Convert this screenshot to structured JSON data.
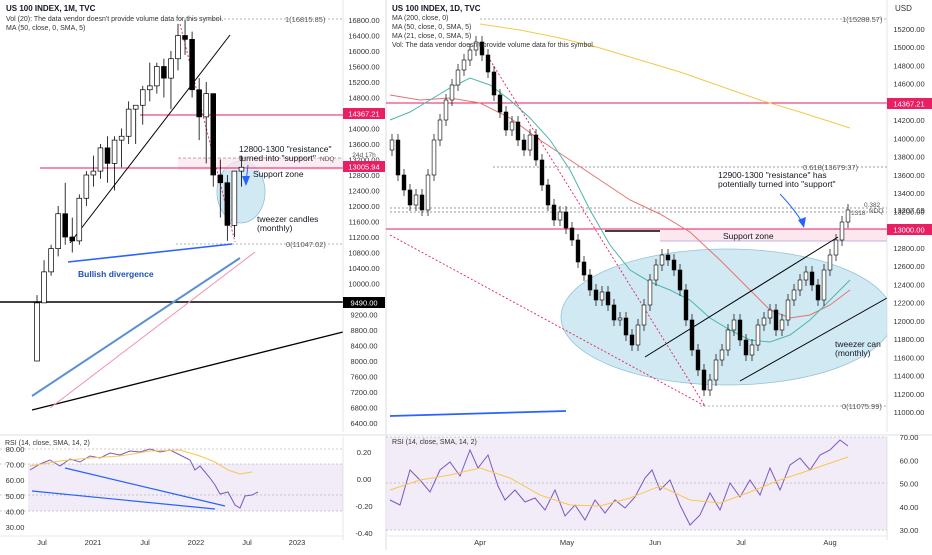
{
  "left_chart": {
    "header": {
      "title": "US 100 INDEX, 1M, TVC",
      "vol": "Vol (20): The data vendor doesn't provide volume data for this symbol.",
      "ma": "MA (50, close, 0, SMA, 5)"
    },
    "y_ticks": [
      "16800.00",
      "16400.00",
      "16000.00",
      "15600.00",
      "15200.00",
      "14800.00",
      "14400.00",
      "14000.00",
      "13600.00",
      "13200.00",
      "12800.00",
      "12400.00",
      "12000.00",
      "11600.00",
      "11200.00",
      "10800.00",
      "10400.00",
      "10000.00",
      "9600.00",
      "9200.00",
      "8800.00",
      "8400.00",
      "8000.00",
      "7600.00",
      "7200.00",
      "6800.00",
      "6400.00"
    ],
    "price_tags": {
      "red_upper": "14367.21",
      "red_lower": "13005.94",
      "black": "9490.00",
      "small": "24d 17h"
    },
    "fib_labels": {
      "top": "1(16815.85)",
      "bottom": "0(11047.02)",
      "ndq": "NDQ"
    },
    "annotations": {
      "resistance": "12800-1300 \"resistance\"\nturned into \"support\"",
      "support_zone": "Support zone",
      "tweezer": "tweezer candles\n(monthly)",
      "bullish": "Bullish divergence"
    },
    "x_labels": [
      "Jul",
      "2021",
      "Jul",
      "2022",
      "Jul",
      "2023"
    ],
    "rsi": {
      "label": "RSI (14, close, SMA, 14, 2)",
      "y_ticks": [
        "80.00",
        "70.00",
        "60.00",
        "50.00",
        "40.00",
        "30.00"
      ]
    },
    "osc": {
      "y_ticks": [
        "0.20",
        "0.00",
        "-0.20",
        "-0.40"
      ]
    }
  },
  "right_chart": {
    "header": {
      "title": "US 100 INDEX, 1D, TVC",
      "ma1": "MA (200, close, 0)",
      "ma2": "MA (50, close, 0, SMA, 5)",
      "ma3": "MA (21, close, 0, SMA, 5)",
      "vol": "Vol: The data vendor doesn't provide volume data for this symbol."
    },
    "currency": "USD",
    "y_ticks": [
      "15200.00",
      "15000.00",
      "14800.00",
      "14600.00",
      "14400.00",
      "14200.00",
      "14000.00",
      "13800.00",
      "13600.00",
      "13400.00",
      "13200.00",
      "13000.00",
      "12800.00",
      "12600.00",
      "12400.00",
      "12200.00",
      "12000.00",
      "11800.00",
      "11600.00",
      "11400.00",
      "11200.00",
      "11000.00"
    ],
    "price_tags": {
      "red_upper": "14367.21",
      "red_lower": "13000.00",
      "gray": "13207.69"
    },
    "fib_labels": {
      "top": "1(15288.57)",
      "mid": "0.618(13679.37)",
      "bottom": "0(11075.99)",
      "ndq": "NDQ",
      "small1": "0.382",
      "small2": "1318"
    },
    "annotations": {
      "resistance": "12900-1300 \"resistance\" has\npotentially turned into \"support\"",
      "support_zone": "Support zone",
      "tweezer": "tweezer can\n(monthly)"
    },
    "x_labels": [
      "Apr",
      "May",
      "Jun",
      "Jul",
      "Aug"
    ],
    "rsi": {
      "label": "RSI (14, close, SMA, 14, 2)",
      "y_ticks": [
        "70.00",
        "60.00",
        "50.00",
        "40.00",
        "30.00"
      ]
    }
  },
  "colors": {
    "bull": "#ffffff",
    "bear": "#000000",
    "red_level": "#e91e63",
    "blue_line": "#2962ff",
    "ma200": "#f2c94c",
    "ma50": "#e57373",
    "ma21": "#4db6ac",
    "rsi": "#7e57c2",
    "rsi_ma": "#f9c74f",
    "zone": "#c8e6f0",
    "support_zone": "#fce4ec"
  },
  "chart_data": [
    {
      "type": "candlestick",
      "title": "US 100 INDEX, 1M, TVC",
      "timeframe": "monthly",
      "ylim": [
        6400,
        16800
      ],
      "levels": {
        "resistance_upper": 14367.21,
        "resistance_lower": 13005.94,
        "support_9490": 9490.0,
        "fib_1": 16815.85,
        "fib_0": 11047.02
      },
      "candles_approx": [
        {
          "o": 8000,
          "h": 9700,
          "l": 8000,
          "c": 9500
        },
        {
          "o": 9500,
          "h": 10600,
          "l": 9500,
          "c": 10300
        },
        {
          "o": 10300,
          "h": 11000,
          "l": 10200,
          "c": 10900
        },
        {
          "o": 10900,
          "h": 12000,
          "l": 10700,
          "c": 11800
        },
        {
          "o": 11800,
          "h": 12600,
          "l": 11000,
          "c": 11200
        },
        {
          "o": 11200,
          "h": 11700,
          "l": 10800,
          "c": 11100
        },
        {
          "o": 11100,
          "h": 12300,
          "l": 11000,
          "c": 12200
        },
        {
          "o": 12200,
          "h": 12900,
          "l": 12000,
          "c": 12800
        },
        {
          "o": 12800,
          "h": 13300,
          "l": 12500,
          "c": 12900
        },
        {
          "o": 12900,
          "h": 13600,
          "l": 12700,
          "c": 13500
        },
        {
          "o": 13500,
          "h": 13800,
          "l": 12600,
          "c": 13100
        },
        {
          "o": 13100,
          "h": 13800,
          "l": 12400,
          "c": 13700
        },
        {
          "o": 13700,
          "h": 14000,
          "l": 13000,
          "c": 13800
        },
        {
          "o": 13800,
          "h": 14700,
          "l": 13600,
          "c": 14500
        },
        {
          "o": 14500,
          "h": 14600,
          "l": 13600,
          "c": 14600
        },
        {
          "o": 14600,
          "h": 15100,
          "l": 14100,
          "c": 15000
        },
        {
          "o": 15000,
          "h": 15700,
          "l": 14700,
          "c": 15100
        },
        {
          "o": 15100,
          "h": 15700,
          "l": 14900,
          "c": 15600
        },
        {
          "o": 15600,
          "h": 15800,
          "l": 14800,
          "c": 15300
        },
        {
          "o": 15300,
          "h": 16000,
          "l": 14500,
          "c": 15800
        },
        {
          "o": 15800,
          "h": 16700,
          "l": 15500,
          "c": 16400
        },
        {
          "o": 16400,
          "h": 16800,
          "l": 15900,
          "c": 16300
        },
        {
          "o": 16300,
          "h": 16500,
          "l": 14800,
          "c": 15000
        },
        {
          "o": 15000,
          "h": 15300,
          "l": 13700,
          "c": 14300
        },
        {
          "o": 14300,
          "h": 15200,
          "l": 13100,
          "c": 14900
        },
        {
          "o": 14900,
          "h": 14900,
          "l": 12500,
          "c": 12800
        },
        {
          "o": 12800,
          "h": 13200,
          "l": 11700,
          "c": 12600
        },
        {
          "o": 12600,
          "h": 12800,
          "l": 11100,
          "c": 11500
        },
        {
          "o": 11500,
          "h": 12900,
          "l": 11200,
          "c": 12900
        },
        {
          "o": 12900,
          "h": 13300,
          "l": 12500,
          "c": 13000
        }
      ]
    },
    {
      "type": "candlestick",
      "title": "US 100 INDEX, 1D, TVC",
      "timeframe": "daily",
      "ylim": [
        11000,
        15300
      ],
      "levels": {
        "resistance_upper": 14367.21,
        "support": 13000.0,
        "last": 13207.69,
        "fib_1": 15288.57,
        "fib_0618": 13679.37,
        "fib_0": 11075.99
      },
      "x": [
        "Apr",
        "May",
        "Jun",
        "Jul",
        "Aug"
      ]
    }
  ]
}
